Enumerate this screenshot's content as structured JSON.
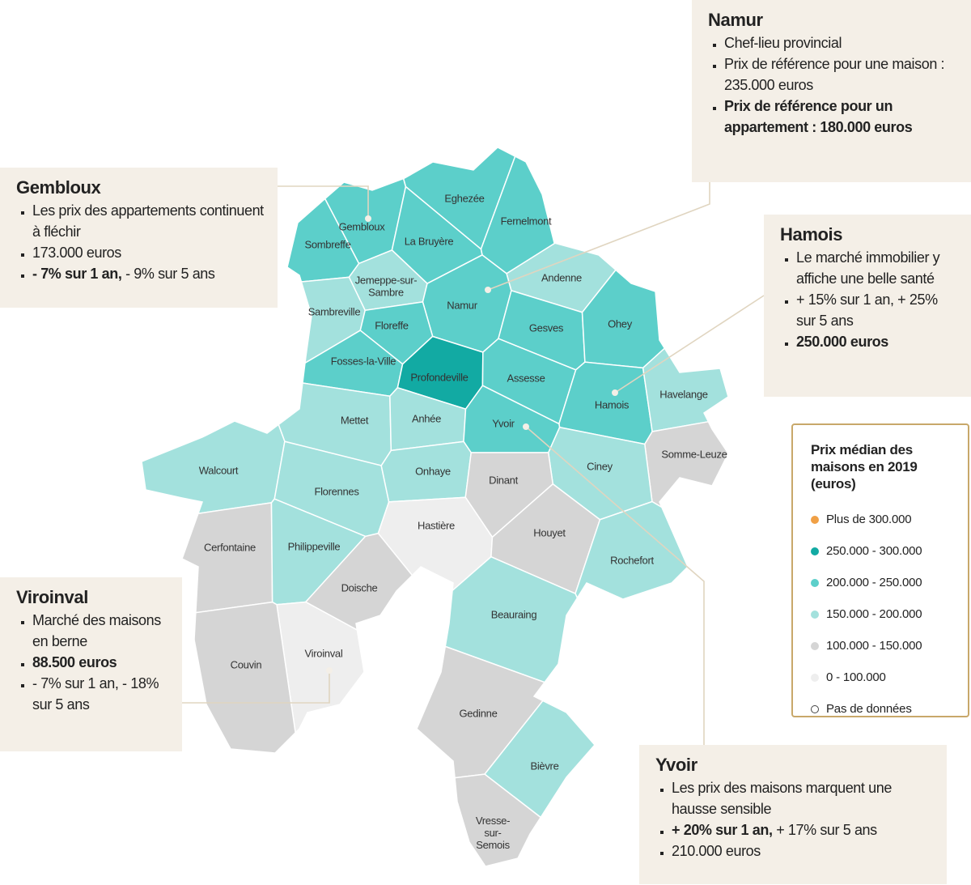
{
  "communes": [
    {
      "name": "Gembloux",
      "color": "#5ccfca"
    },
    {
      "name": "Sombreffe",
      "color": "#5ccfca"
    },
    {
      "name": "Eghezée",
      "color": "#5ccfca"
    },
    {
      "name": "Fernelmont",
      "color": "#5ccfca"
    },
    {
      "name": "La Bruyère",
      "color": "#5ccfca"
    },
    {
      "name": "Jemeppe-sur-Sambre",
      "color": "#a3e1dd"
    },
    {
      "name": "Sambreville",
      "color": "#a3e1dd"
    },
    {
      "name": "Namur",
      "color": "#5ccfca"
    },
    {
      "name": "Andenne",
      "color": "#a3e1dd"
    },
    {
      "name": "Floreffe",
      "color": "#5ccfca"
    },
    {
      "name": "Gesves",
      "color": "#5ccfca"
    },
    {
      "name": "Ohey",
      "color": "#5ccfca"
    },
    {
      "name": "Fosses-la-Ville",
      "color": "#5ccfca"
    },
    {
      "name": "Profondeville",
      "color": "#12aaa3"
    },
    {
      "name": "Assesse",
      "color": "#5ccfca"
    },
    {
      "name": "Hamois",
      "color": "#5ccfca"
    },
    {
      "name": "Havelange",
      "color": "#a3e1dd"
    },
    {
      "name": "Mettet",
      "color": "#a3e1dd"
    },
    {
      "name": "Anhée",
      "color": "#a3e1dd"
    },
    {
      "name": "Yvoir",
      "color": "#5ccfca"
    },
    {
      "name": "Somme-Leuze",
      "color": "#d5d5d5"
    },
    {
      "name": "Ciney",
      "color": "#a3e1dd"
    },
    {
      "name": "Walcourt",
      "color": "#a3e1dd"
    },
    {
      "name": "Florennes",
      "color": "#a3e1dd"
    },
    {
      "name": "Onhaye",
      "color": "#a3e1dd"
    },
    {
      "name": "Dinant",
      "color": "#d5d5d5"
    },
    {
      "name": "Hastière",
      "color": "#eeeeee"
    },
    {
      "name": "Houyet",
      "color": "#d5d5d5"
    },
    {
      "name": "Cerfontaine",
      "color": "#d5d5d5"
    },
    {
      "name": "Philippeville",
      "color": "#a3e1dd"
    },
    {
      "name": "Rochefort",
      "color": "#a3e1dd"
    },
    {
      "name": "Doische",
      "color": "#d5d5d5"
    },
    {
      "name": "Beauraing",
      "color": "#a3e1dd"
    },
    {
      "name": "Viroinval",
      "color": "#eeeeee"
    },
    {
      "name": "Couvin",
      "color": "#d5d5d5"
    },
    {
      "name": "Gedinne",
      "color": "#d5d5d5"
    },
    {
      "name": "Bièvre",
      "color": "#a3e1dd"
    },
    {
      "name": "Vresse-sur-Semois",
      "color": "#d5d5d5"
    }
  ],
  "legend": {
    "title": "Prix médian des maisons en 2019 (euros)",
    "items": [
      {
        "label": "Plus de 300.000",
        "color": "#f0a046"
      },
      {
        "label": "250.000 - 300.000",
        "color": "#12aaa3"
      },
      {
        "label": "200.000 - 250.000",
        "color": "#5ccfca"
      },
      {
        "label": "150.000 - 200.000",
        "color": "#a3e1dd"
      },
      {
        "label": "100.000 - 150.000",
        "color": "#d5d5d5"
      },
      {
        "label": "0 - 100.000",
        "color": "#eeeeee"
      },
      {
        "label": "Pas de données",
        "color": "#ffffff"
      }
    ]
  },
  "callouts": [
    {
      "title": "Namur",
      "bullets": [
        [
          {
            "text": "Chef-lieu provincial"
          }
        ],
        [
          {
            "text": "Prix de référence pour une maison : 235.000 euros"
          }
        ],
        [
          {
            "text": "Prix de référence pour un appartement : 180.000 euros",
            "bold": true
          }
        ]
      ]
    },
    {
      "title": "Gembloux",
      "bullets": [
        [
          {
            "text": "Les prix des appartements continuent à fléchir"
          }
        ],
        [
          {
            "text": "173.000 euros"
          }
        ],
        [
          {
            "text": "- 7% sur 1 an,",
            "bold": true
          },
          {
            "text": "- 9% sur 5 ans"
          }
        ]
      ]
    },
    {
      "title": "Hamois",
      "bullets": [
        [
          {
            "text": "Le marché immobilier y affiche une belle santé"
          }
        ],
        [
          {
            "text": "+ 15% sur 1 an, + 25% sur 5 ans"
          }
        ],
        [
          {
            "text": "250.000 euros",
            "bold": true
          }
        ]
      ]
    },
    {
      "title": "Viroinval",
      "bullets": [
        [
          {
            "text": "Marché des maisons en berne"
          }
        ],
        [
          {
            "text": "88.500 euros",
            "bold": true
          }
        ],
        [
          {
            "text": "- 7% sur 1 an, - 18% sur 5 ans"
          }
        ]
      ]
    },
    {
      "title": "Yvoir",
      "bullets": [
        [
          {
            "text": "Les prix des maisons marquent une hausse sensible"
          }
        ],
        [
          {
            "text": "+ 20% sur 1 an,",
            "bold": true
          },
          {
            "text": "+ 17% sur 5 ans"
          }
        ],
        [
          {
            "text": "210.000 euros"
          }
        ]
      ]
    }
  ]
}
